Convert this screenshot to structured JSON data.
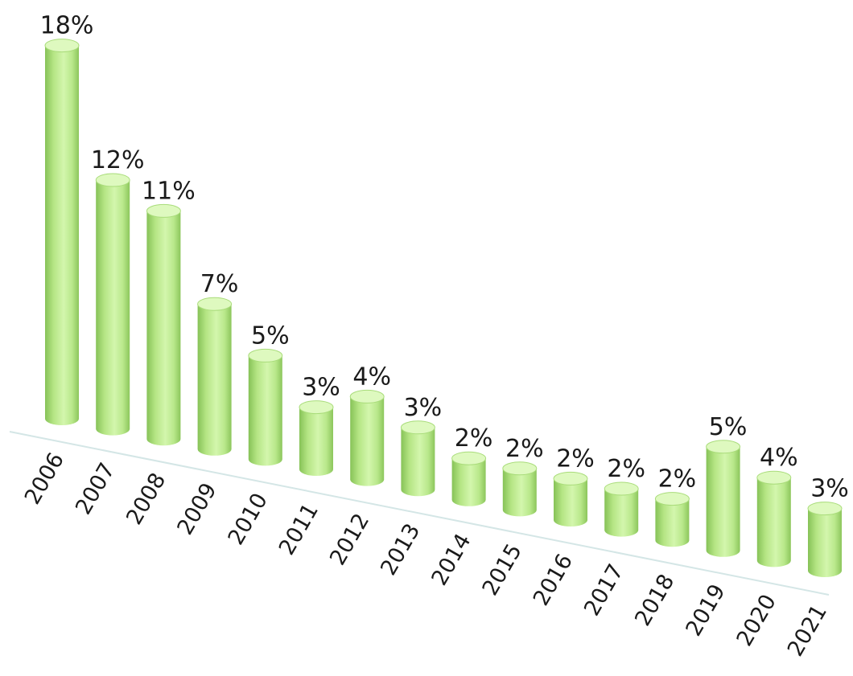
{
  "chart_data": {
    "type": "bar",
    "style": "3d-cylinder",
    "categories": [
      "2006",
      "2007",
      "2008",
      "2009",
      "2010",
      "2011",
      "2012",
      "2013",
      "2014",
      "2015",
      "2016",
      "2017",
      "2018",
      "2019",
      "2020",
      "2021"
    ],
    "values": [
      18,
      12,
      11,
      7,
      5,
      3,
      4,
      3,
      2,
      2,
      2,
      2,
      2,
      5,
      4,
      3
    ],
    "data_labels": [
      "18%",
      "12%",
      "11%",
      "7%",
      "5%",
      "3%",
      "4%",
      "3%",
      "2%",
      "2%",
      "2%",
      "2%",
      "2%",
      "5%",
      "4%",
      "3%"
    ],
    "title": "",
    "xlabel": "",
    "ylabel": "",
    "ylim": [
      0,
      18
    ],
    "grid": false,
    "legend": "none",
    "colors": {
      "bar": "#c8f09a",
      "bar_dark": "#86c257",
      "bar_top": "#def9bf",
      "baseline": "#d4e6e6"
    }
  }
}
